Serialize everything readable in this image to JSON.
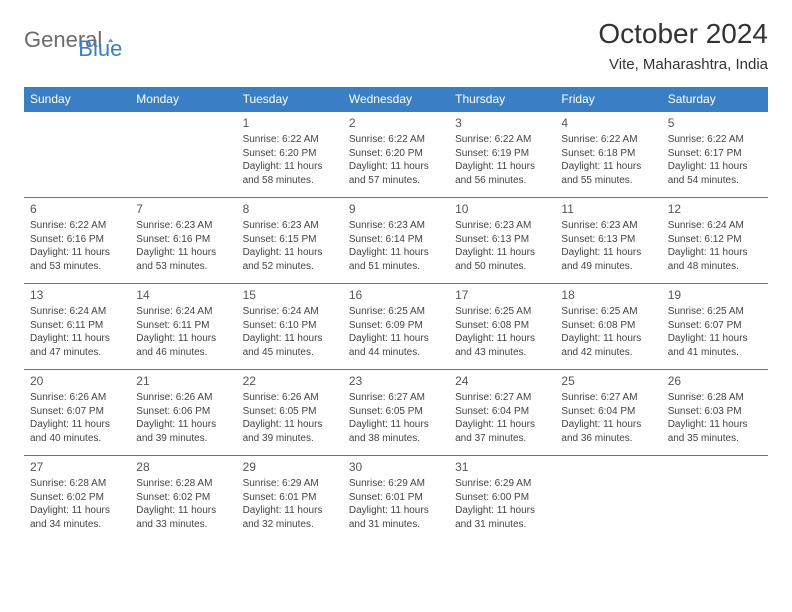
{
  "logo": {
    "general": "General",
    "blue": "Blue"
  },
  "title": "October 2024",
  "location": "Vite, Maharashtra, India",
  "header_color": "#3a7fc4",
  "header_text_color": "#ffffff",
  "border_color": "#3a7fc4",
  "body_text_color": "#444444",
  "day_headers": [
    "Sunday",
    "Monday",
    "Tuesday",
    "Wednesday",
    "Thursday",
    "Friday",
    "Saturday"
  ],
  "cell_fontsize_pt": 7.5,
  "header_fontsize_pt": 9,
  "title_fontsize_pt": 21,
  "weeks": [
    [
      null,
      null,
      {
        "n": "1",
        "sunrise": "Sunrise: 6:22 AM",
        "sunset": "Sunset: 6:20 PM",
        "daylight": "Daylight: 11 hours and 58 minutes."
      },
      {
        "n": "2",
        "sunrise": "Sunrise: 6:22 AM",
        "sunset": "Sunset: 6:20 PM",
        "daylight": "Daylight: 11 hours and 57 minutes."
      },
      {
        "n": "3",
        "sunrise": "Sunrise: 6:22 AM",
        "sunset": "Sunset: 6:19 PM",
        "daylight": "Daylight: 11 hours and 56 minutes."
      },
      {
        "n": "4",
        "sunrise": "Sunrise: 6:22 AM",
        "sunset": "Sunset: 6:18 PM",
        "daylight": "Daylight: 11 hours and 55 minutes."
      },
      {
        "n": "5",
        "sunrise": "Sunrise: 6:22 AM",
        "sunset": "Sunset: 6:17 PM",
        "daylight": "Daylight: 11 hours and 54 minutes."
      }
    ],
    [
      {
        "n": "6",
        "sunrise": "Sunrise: 6:22 AM",
        "sunset": "Sunset: 6:16 PM",
        "daylight": "Daylight: 11 hours and 53 minutes."
      },
      {
        "n": "7",
        "sunrise": "Sunrise: 6:23 AM",
        "sunset": "Sunset: 6:16 PM",
        "daylight": "Daylight: 11 hours and 53 minutes."
      },
      {
        "n": "8",
        "sunrise": "Sunrise: 6:23 AM",
        "sunset": "Sunset: 6:15 PM",
        "daylight": "Daylight: 11 hours and 52 minutes."
      },
      {
        "n": "9",
        "sunrise": "Sunrise: 6:23 AM",
        "sunset": "Sunset: 6:14 PM",
        "daylight": "Daylight: 11 hours and 51 minutes."
      },
      {
        "n": "10",
        "sunrise": "Sunrise: 6:23 AM",
        "sunset": "Sunset: 6:13 PM",
        "daylight": "Daylight: 11 hours and 50 minutes."
      },
      {
        "n": "11",
        "sunrise": "Sunrise: 6:23 AM",
        "sunset": "Sunset: 6:13 PM",
        "daylight": "Daylight: 11 hours and 49 minutes."
      },
      {
        "n": "12",
        "sunrise": "Sunrise: 6:24 AM",
        "sunset": "Sunset: 6:12 PM",
        "daylight": "Daylight: 11 hours and 48 minutes."
      }
    ],
    [
      {
        "n": "13",
        "sunrise": "Sunrise: 6:24 AM",
        "sunset": "Sunset: 6:11 PM",
        "daylight": "Daylight: 11 hours and 47 minutes."
      },
      {
        "n": "14",
        "sunrise": "Sunrise: 6:24 AM",
        "sunset": "Sunset: 6:11 PM",
        "daylight": "Daylight: 11 hours and 46 minutes."
      },
      {
        "n": "15",
        "sunrise": "Sunrise: 6:24 AM",
        "sunset": "Sunset: 6:10 PM",
        "daylight": "Daylight: 11 hours and 45 minutes."
      },
      {
        "n": "16",
        "sunrise": "Sunrise: 6:25 AM",
        "sunset": "Sunset: 6:09 PM",
        "daylight": "Daylight: 11 hours and 44 minutes."
      },
      {
        "n": "17",
        "sunrise": "Sunrise: 6:25 AM",
        "sunset": "Sunset: 6:08 PM",
        "daylight": "Daylight: 11 hours and 43 minutes."
      },
      {
        "n": "18",
        "sunrise": "Sunrise: 6:25 AM",
        "sunset": "Sunset: 6:08 PM",
        "daylight": "Daylight: 11 hours and 42 minutes."
      },
      {
        "n": "19",
        "sunrise": "Sunrise: 6:25 AM",
        "sunset": "Sunset: 6:07 PM",
        "daylight": "Daylight: 11 hours and 41 minutes."
      }
    ],
    [
      {
        "n": "20",
        "sunrise": "Sunrise: 6:26 AM",
        "sunset": "Sunset: 6:07 PM",
        "daylight": "Daylight: 11 hours and 40 minutes."
      },
      {
        "n": "21",
        "sunrise": "Sunrise: 6:26 AM",
        "sunset": "Sunset: 6:06 PM",
        "daylight": "Daylight: 11 hours and 39 minutes."
      },
      {
        "n": "22",
        "sunrise": "Sunrise: 6:26 AM",
        "sunset": "Sunset: 6:05 PM",
        "daylight": "Daylight: 11 hours and 39 minutes."
      },
      {
        "n": "23",
        "sunrise": "Sunrise: 6:27 AM",
        "sunset": "Sunset: 6:05 PM",
        "daylight": "Daylight: 11 hours and 38 minutes."
      },
      {
        "n": "24",
        "sunrise": "Sunrise: 6:27 AM",
        "sunset": "Sunset: 6:04 PM",
        "daylight": "Daylight: 11 hours and 37 minutes."
      },
      {
        "n": "25",
        "sunrise": "Sunrise: 6:27 AM",
        "sunset": "Sunset: 6:04 PM",
        "daylight": "Daylight: 11 hours and 36 minutes."
      },
      {
        "n": "26",
        "sunrise": "Sunrise: 6:28 AM",
        "sunset": "Sunset: 6:03 PM",
        "daylight": "Daylight: 11 hours and 35 minutes."
      }
    ],
    [
      {
        "n": "27",
        "sunrise": "Sunrise: 6:28 AM",
        "sunset": "Sunset: 6:02 PM",
        "daylight": "Daylight: 11 hours and 34 minutes."
      },
      {
        "n": "28",
        "sunrise": "Sunrise: 6:28 AM",
        "sunset": "Sunset: 6:02 PM",
        "daylight": "Daylight: 11 hours and 33 minutes."
      },
      {
        "n": "29",
        "sunrise": "Sunrise: 6:29 AM",
        "sunset": "Sunset: 6:01 PM",
        "daylight": "Daylight: 11 hours and 32 minutes."
      },
      {
        "n": "30",
        "sunrise": "Sunrise: 6:29 AM",
        "sunset": "Sunset: 6:01 PM",
        "daylight": "Daylight: 11 hours and 31 minutes."
      },
      {
        "n": "31",
        "sunrise": "Sunrise: 6:29 AM",
        "sunset": "Sunset: 6:00 PM",
        "daylight": "Daylight: 11 hours and 31 minutes."
      },
      null,
      null
    ]
  ]
}
